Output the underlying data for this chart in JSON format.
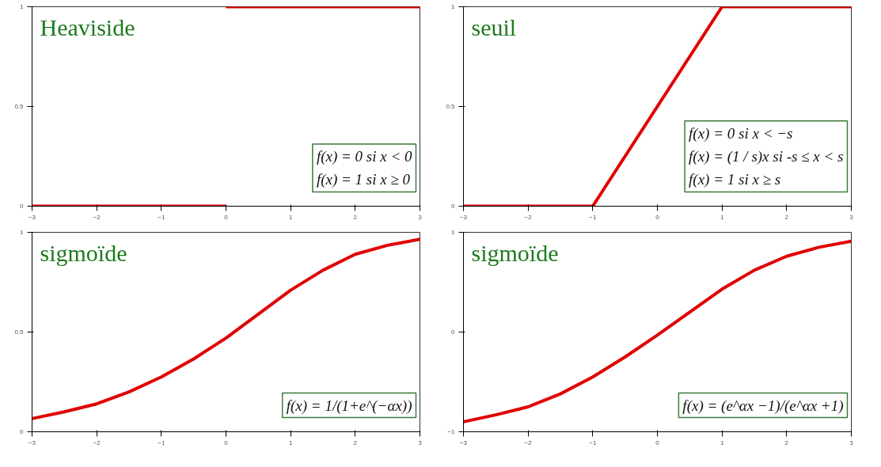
{
  "chart_data": [
    {
      "type": "line",
      "title": "Heaviside",
      "xlim": [
        -3,
        3
      ],
      "xticks": [
        -3,
        -2,
        -1,
        0,
        1,
        2,
        3
      ],
      "ylim": [
        0,
        1
      ],
      "yticks": [
        0,
        0.5,
        1
      ],
      "grid": false,
      "series": [
        {
          "color": "#e00000",
          "x": [
            -3,
            0
          ],
          "values": [
            0,
            0
          ]
        },
        {
          "color": "#e00000",
          "x": [
            0,
            3
          ],
          "values": [
            1,
            1
          ]
        }
      ],
      "annotations": [
        "f(x) = 0 si x < 0",
        "f(x) = 1 si x ≥ 0"
      ]
    },
    {
      "type": "line",
      "title": "seuil",
      "x": [
        -3,
        -1,
        1,
        3
      ],
      "xlim": [
        -3,
        3
      ],
      "xticks": [
        -3,
        -2,
        -1,
        0,
        1,
        2,
        3
      ],
      "ylim": [
        0,
        1
      ],
      "yticks": [
        0,
        0.5,
        1
      ],
      "grid": false,
      "series": [
        {
          "color": "#e00000",
          "values": [
            0,
            0,
            1,
            1
          ]
        }
      ],
      "annotations": [
        "f(x) = 0          si x < −s",
        "f(x) = (1 / s)x si -s ≤ x < s",
        "f(x) = 1          si x ≥ s"
      ]
    },
    {
      "type": "line",
      "title": "sigmoïde",
      "x": [
        -3,
        -2.5,
        -2,
        -1.5,
        -1,
        -0.5,
        0,
        0.5,
        1,
        1.5,
        2,
        2.5,
        3
      ],
      "xlim": [
        -3,
        3
      ],
      "xticks": [
        -3,
        -2,
        -1,
        0,
        1,
        2,
        3
      ],
      "ylim": [
        0,
        1
      ],
      "yticks": [
        0,
        0.5,
        1
      ],
      "grid": false,
      "series": [
        {
          "color": "#e00000",
          "values": [
            0.066,
            0.1,
            0.14,
            0.2,
            0.275,
            0.365,
            0.47,
            0.59,
            0.71,
            0.81,
            0.89,
            0.935,
            0.965
          ]
        }
      ],
      "annotations": [
        "f(x) = 1/(1+e^(−αx))"
      ]
    },
    {
      "type": "line",
      "title": "sigmoïde",
      "x": [
        -3,
        -2.5,
        -2,
        -1.5,
        -1,
        -0.5,
        0,
        0.5,
        1,
        1.5,
        2,
        2.5,
        3
      ],
      "xlim": [
        -3,
        3
      ],
      "xticks": [
        -3,
        -2,
        -1,
        0,
        1,
        2,
        3
      ],
      "ylim": [
        -1,
        1
      ],
      "yticks": [
        -1,
        0,
        1
      ],
      "grid": false,
      "series": [
        {
          "color": "#e00000",
          "values": [
            -0.9,
            -0.83,
            -0.75,
            -0.62,
            -0.45,
            -0.25,
            -0.03,
            0.2,
            0.43,
            0.62,
            0.76,
            0.85,
            0.91
          ]
        }
      ],
      "annotations": [
        "f(x) = (e^αx −1)/(e^αx +1)"
      ]
    }
  ]
}
